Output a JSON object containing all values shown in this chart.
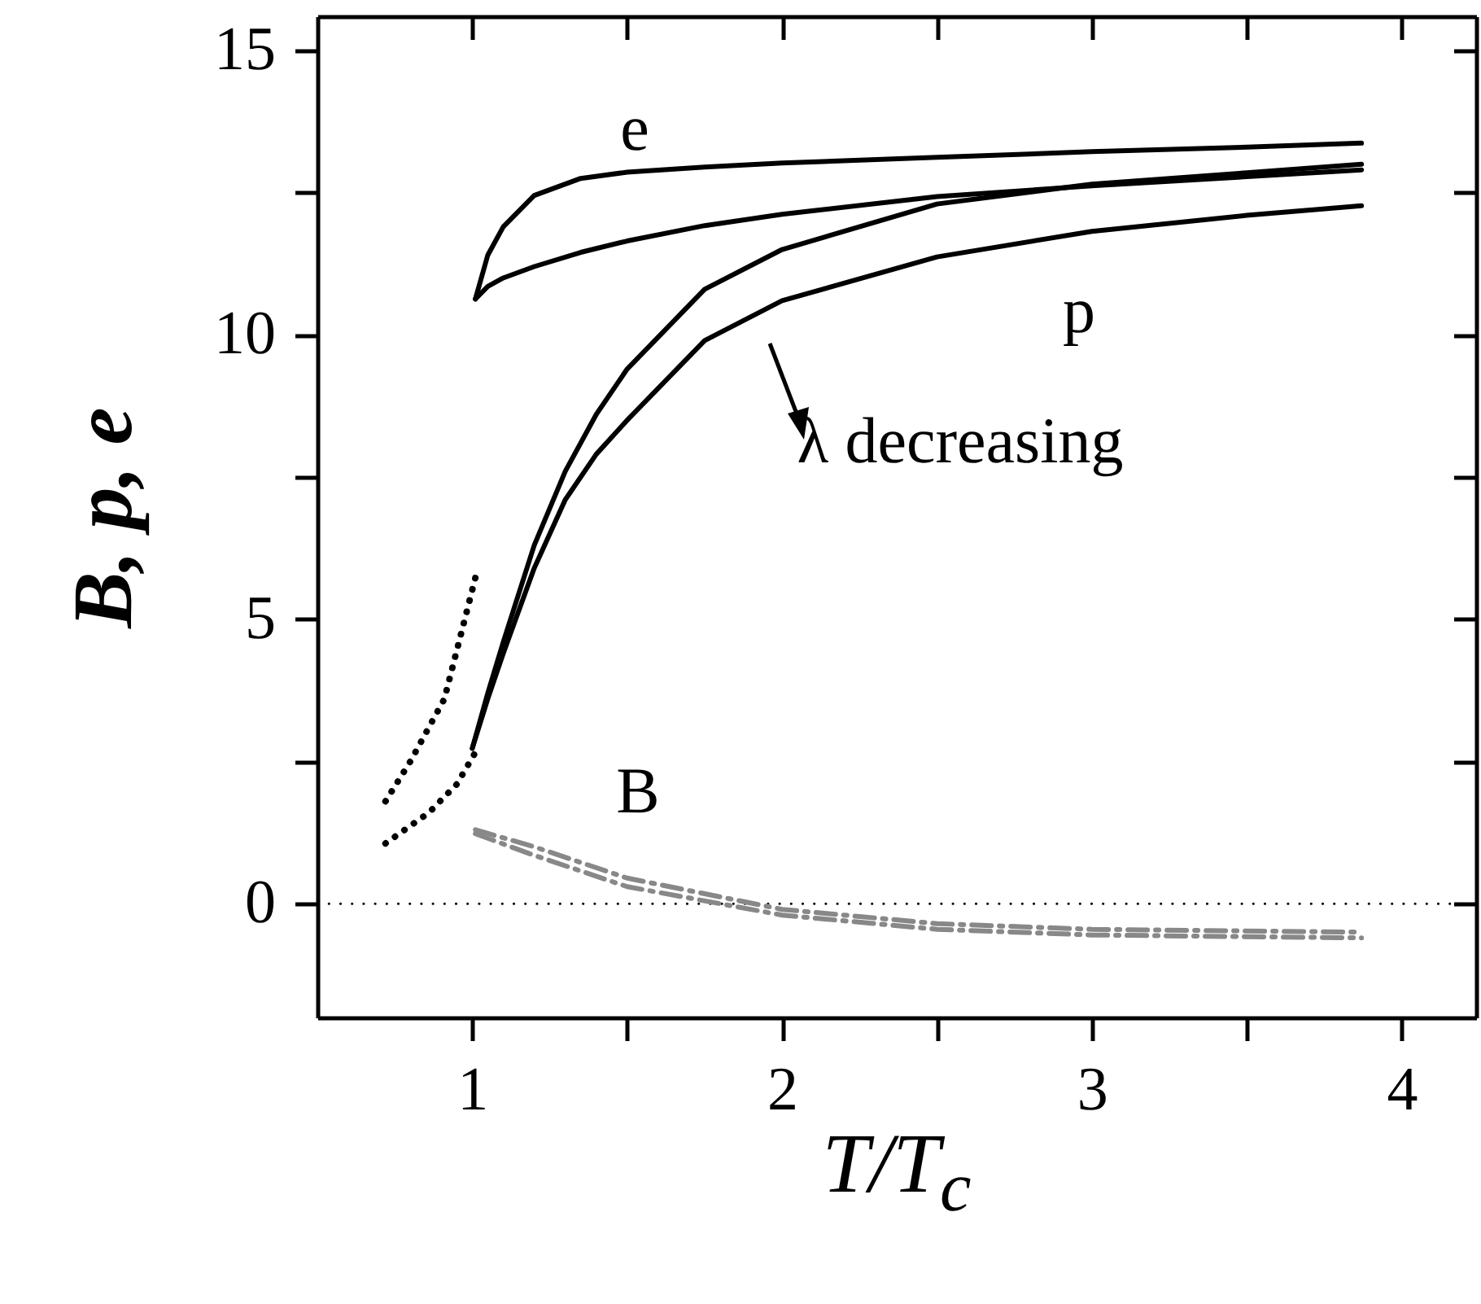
{
  "chart_data": {
    "type": "line",
    "xlabel": "T/T$_{c}$",
    "ylabel": "B, p, e",
    "xlim": [
      0.5,
      4.24
    ],
    "ylim": [
      -2,
      15.6
    ],
    "xticks": [
      1,
      {
        "value": 1.5,
        "label": null
      },
      2,
      {
        "value": 2.5,
        "label": null
      },
      3,
      {
        "value": 3.5,
        "label": null
      },
      4
    ],
    "yticks": [
      0,
      {
        "value": 2.5,
        "label": null
      },
      5,
      {
        "value": 7.5,
        "label": null
      },
      10,
      {
        "value": 12.5,
        "label": null
      },
      15
    ],
    "series": [
      {
        "color": "#000000",
        "line_style": "solid",
        "x": [
          1.01,
          1.05,
          1.1,
          1.2,
          1.35,
          1.5,
          1.75,
          2.0,
          2.5,
          3.0,
          3.5,
          3.87
        ],
        "values": [
          10.63,
          11.4,
          11.9,
          12.45,
          12.75,
          12.86,
          12.95,
          13.02,
          13.12,
          13.22,
          13.3,
          13.37
        ]
      },
      {
        "color": "#000000",
        "line_style": "solid",
        "x": [
          1.01,
          1.05,
          1.1,
          1.2,
          1.35,
          1.5,
          1.75,
          2.0,
          2.5,
          3.0,
          3.5,
          3.87
        ],
        "values": [
          10.63,
          10.85,
          11.0,
          11.2,
          11.45,
          11.65,
          11.92,
          12.12,
          12.43,
          12.62,
          12.78,
          12.9
        ]
      },
      {
        "color": "#000000",
        "line_style": "solid",
        "x": [
          1.0,
          1.05,
          1.1,
          1.2,
          1.3,
          1.4,
          1.5,
          1.75,
          2.0,
          2.5,
          3.0,
          3.5,
          3.87
        ],
        "values": [
          2.73,
          3.7,
          4.6,
          6.3,
          7.6,
          8.6,
          9.4,
          10.8,
          11.5,
          12.3,
          12.65,
          12.85,
          13.0
        ]
      },
      {
        "color": "#000000",
        "line_style": "solid",
        "x": [
          1.0,
          1.05,
          1.1,
          1.2,
          1.3,
          1.4,
          1.5,
          1.75,
          2.0,
          2.5,
          3.0,
          3.5,
          3.87
        ],
        "values": [
          2.73,
          3.6,
          4.4,
          5.9,
          7.1,
          7.9,
          8.5,
          9.9,
          10.6,
          11.37,
          11.82,
          12.1,
          12.27
        ]
      },
      {
        "color": "#000000",
        "line_style": "dotted",
        "x": [
          0.72,
          0.8,
          0.91,
          1.01
        ],
        "values": [
          1.8,
          2.5,
          3.6,
          5.73
        ]
      },
      {
        "color": "#000000",
        "line_style": "dotted",
        "x": [
          0.72,
          0.86,
          0.95,
          1.01
        ],
        "values": [
          1.06,
          1.6,
          2.1,
          2.66
        ]
      },
      {
        "color": "#888888",
        "line_style": "dashed",
        "x": [
          1.01,
          1.2,
          1.5,
          2.0,
          2.5,
          3.0,
          3.87
        ],
        "values": [
          1.3,
          1.0,
          0.45,
          -0.1,
          -0.35,
          -0.45,
          -0.5
        ]
      },
      {
        "color": "#888888",
        "line_style": "dashed",
        "x": [
          1.01,
          1.2,
          1.5,
          2.0,
          2.5,
          3.0,
          3.87
        ],
        "values": [
          1.23,
          0.85,
          0.3,
          -0.2,
          -0.45,
          -0.55,
          -0.6
        ]
      }
    ],
    "ref_lines": [
      {
        "axis": "y",
        "value": 0,
        "label": null,
        "color": "#000000",
        "line_style": "dotted"
      }
    ],
    "annotations": [
      "e",
      "p",
      "λ decreasing",
      "B"
    ]
  }
}
